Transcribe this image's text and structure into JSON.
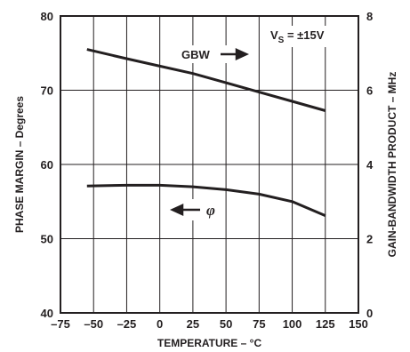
{
  "chart_data": {
    "type": "line",
    "xlabel": "TEMPERATURE – °C",
    "ylabel_left": "PHASE MARGIN – Degrees",
    "ylabel_right": "GAIN-BANDWIDTH PRODUCT – MHz",
    "x_ticks": [
      "–75",
      "–50",
      "–25",
      "0",
      "25",
      "50",
      "75",
      "100",
      "125",
      "150"
    ],
    "y_left_ticks": [
      "40",
      "50",
      "60",
      "70",
      "80"
    ],
    "y_right_ticks": [
      "0",
      "2",
      "4",
      "6",
      "8"
    ],
    "xlim": [
      -75,
      150
    ],
    "ylim_left": [
      40,
      80
    ],
    "ylim_right": [
      0,
      8
    ],
    "grid": true,
    "series": [
      {
        "label": "GBW",
        "axis": "right",
        "x": [
          -55,
          -25,
          0,
          25,
          50,
          75,
          100,
          125
        ],
        "y": [
          7.1,
          6.85,
          6.65,
          6.45,
          6.2,
          5.95,
          5.7,
          5.45
        ]
      },
      {
        "label": "φ",
        "axis": "left",
        "x": [
          -55,
          -25,
          0,
          25,
          50,
          75,
          100,
          125
        ],
        "y": [
          57.1,
          57.2,
          57.2,
          57.0,
          56.6,
          56.0,
          55.0,
          53.1
        ]
      }
    ],
    "annotations": {
      "gbw_label": "GBW",
      "phi_label": "φ",
      "vs_prefix": "V",
      "vs_sub": "S",
      "vs_suffix": " = ±15V"
    }
  }
}
